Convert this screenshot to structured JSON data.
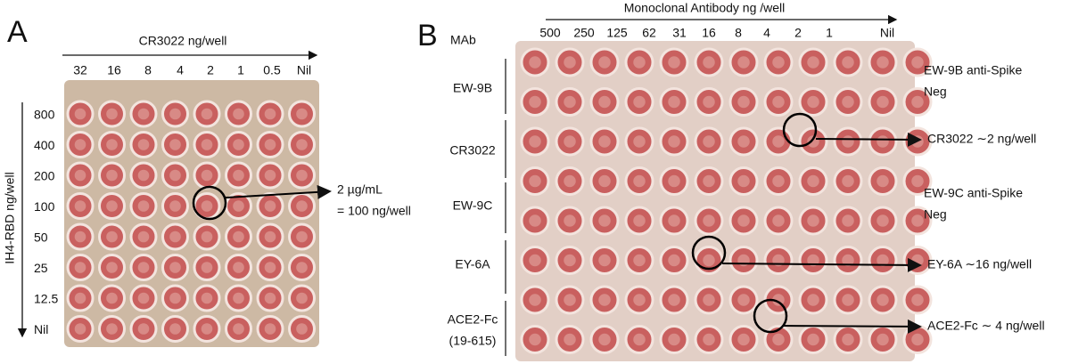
{
  "panel_a": {
    "label": "A",
    "title": "CR3022 ng/well",
    "y_axis_label": "IH4-RBD  ng/well",
    "columns": [
      "32",
      "16",
      "8",
      "4",
      "2",
      "1",
      "0.5",
      "Nil"
    ],
    "rows": [
      "800",
      "400",
      "200",
      "100",
      "50",
      "25",
      "12.5",
      "Nil"
    ],
    "annotation": [
      "2 µg/mL",
      "= 100 ng/well"
    ]
  },
  "panel_b": {
    "label": "B",
    "row_header": "MAb",
    "title": "Monoclonal Antibody ng /well",
    "columns": [
      "500",
      "250",
      "125",
      "62",
      "31",
      "16",
      "8",
      "4",
      "2",
      "1",
      "Nil"
    ],
    "row_groups": [
      "EW-9B",
      "CR3022",
      "EW-9C",
      "EY-6A",
      "ACE2-Fc",
      "(19-615)"
    ],
    "annotations": [
      "EW-9B anti-Spike",
      "Neg",
      "CR3022 ∼2 ng/well",
      "EW-9C anti-Spike",
      "Neg",
      "EY-6A ∼16 ng/well",
      "ACE2-Fc ∼ 4 ng/well"
    ]
  }
}
